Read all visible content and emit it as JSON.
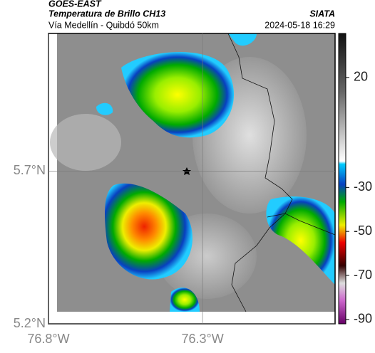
{
  "header": {
    "satellite": "GOES-EAST",
    "product": "Temperatura de Brillo CH13",
    "source": "SIATA",
    "location": "Vía Medellín - Quibdó 50km",
    "datetime": "2024-05-18 16:29"
  },
  "map": {
    "latlim": [
      5.2,
      6.15
    ],
    "lonlim": [
      -76.8,
      -75.87
    ],
    "latticks": [
      {
        "value": 5.7,
        "label": "5.7°N"
      },
      {
        "value": 5.2,
        "label": "5.2°N"
      }
    ],
    "lonticks": [
      {
        "value": -76.8,
        "label": "76.8°W"
      },
      {
        "value": -76.3,
        "label": "76.3°W"
      }
    ]
  },
  "colorbar": {
    "lim": [
      -92,
      40
    ],
    "ticks": [
      20,
      -30,
      -50,
      -70,
      -90
    ]
  }
}
